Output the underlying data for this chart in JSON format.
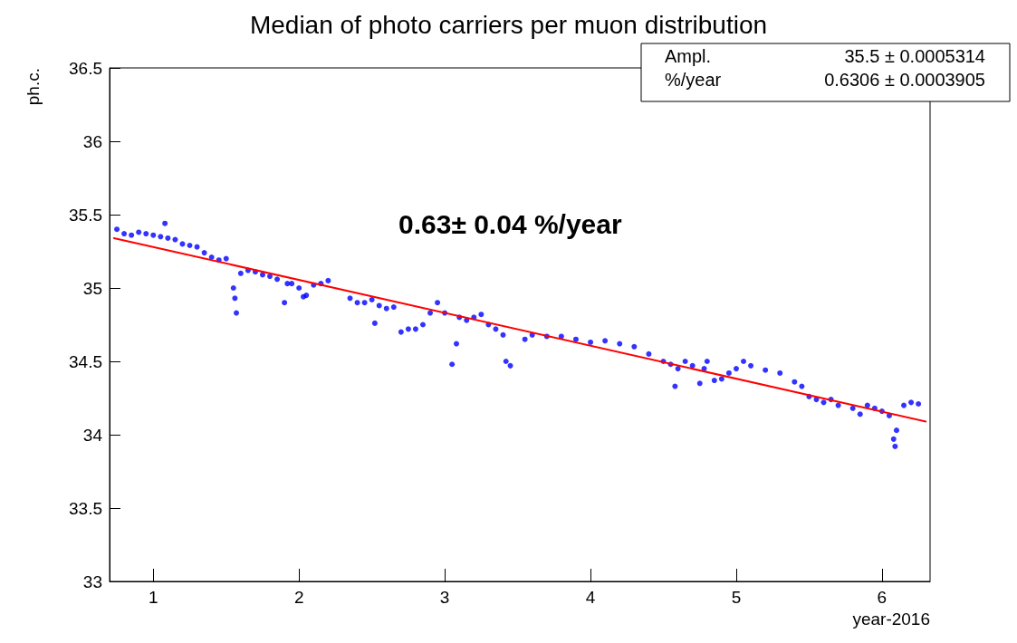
{
  "chart_data": {
    "type": "scatter",
    "title": "Median of photo carriers per muon distribution",
    "xlabel": "year-2016",
    "ylabel": "ph.c.",
    "annotations": [
      "0.63± 0.04 %/year",
      "Ampl.",
      "35.5 ± 0.0005314",
      "%/year",
      "0.6306 ± 0.0003905"
    ],
    "xlim": [
      0.7,
      6.33
    ],
    "xticks": [
      1,
      2,
      3,
      4,
      5,
      6
    ],
    "ylim": [
      33,
      36.5
    ],
    "yticks": [
      33,
      33.5,
      34,
      34.5,
      35,
      35.5,
      36,
      36.5
    ],
    "grid": false,
    "marker": "circle",
    "series": [
      {
        "color": "#0000ff",
        "x": [
          0.75,
          0.8,
          0.85,
          0.9,
          0.95,
          1.0,
          1.05,
          1.08,
          1.1,
          1.15,
          1.2,
          1.25,
          1.3,
          1.35,
          1.4,
          1.45,
          1.5,
          1.55,
          1.56,
          1.57,
          1.6,
          1.65,
          1.7,
          1.75,
          1.8,
          1.85,
          1.9,
          1.92,
          1.95,
          2.0,
          2.03,
          2.05,
          2.1,
          2.15,
          2.2,
          2.35,
          2.4,
          2.45,
          2.5,
          2.52,
          2.55,
          2.6,
          2.65,
          2.7,
          2.75,
          2.8,
          2.85,
          2.9,
          2.95,
          3.0,
          3.05,
          3.08,
          3.1,
          3.15,
          3.2,
          3.25,
          3.3,
          3.35,
          3.4,
          3.42,
          3.45,
          3.55,
          3.6,
          3.7,
          3.8,
          3.9,
          4.0,
          4.1,
          4.2,
          4.3,
          4.4,
          4.5,
          4.55,
          4.58,
          4.6,
          4.65,
          4.7,
          4.75,
          4.78,
          4.8,
          4.85,
          4.9,
          4.95,
          5.0,
          5.05,
          5.1,
          5.2,
          5.3,
          5.4,
          5.45,
          5.5,
          5.55,
          5.6,
          5.65,
          5.7,
          5.8,
          5.85,
          5.9,
          5.95,
          6.0,
          6.05,
          6.08,
          6.09,
          6.1,
          6.15,
          6.2,
          6.25
        ],
        "values": [
          35.4,
          35.37,
          35.36,
          35.38,
          35.37,
          35.36,
          35.35,
          35.44,
          35.34,
          35.33,
          35.3,
          35.29,
          35.28,
          35.24,
          35.21,
          35.19,
          35.2,
          35.0,
          34.93,
          34.83,
          35.1,
          35.12,
          35.11,
          35.09,
          35.08,
          35.06,
          34.9,
          35.03,
          35.03,
          35.0,
          34.94,
          34.95,
          35.02,
          35.03,
          35.05,
          34.93,
          34.9,
          34.9,
          34.92,
          34.76,
          34.88,
          34.86,
          34.87,
          34.7,
          34.72,
          34.72,
          34.75,
          34.83,
          34.9,
          34.83,
          34.48,
          34.62,
          34.8,
          34.78,
          34.8,
          34.82,
          34.75,
          34.72,
          34.68,
          34.5,
          34.47,
          34.65,
          34.68,
          34.67,
          34.67,
          34.65,
          34.63,
          34.64,
          34.62,
          34.6,
          34.55,
          34.5,
          34.48,
          34.33,
          34.45,
          34.5,
          34.47,
          34.35,
          34.45,
          34.5,
          34.37,
          34.38,
          34.42,
          34.45,
          34.5,
          34.47,
          34.44,
          34.42,
          34.36,
          34.33,
          34.26,
          34.24,
          34.22,
          34.24,
          34.2,
          34.18,
          34.14,
          34.2,
          34.18,
          34.16,
          34.13,
          33.97,
          33.92,
          34.03,
          34.2,
          34.22,
          34.21
        ]
      },
      {
        "type": "line",
        "color": "#ff0000",
        "marker": "none",
        "x": [
          0.73,
          6.3
        ],
        "values": [
          35.34,
          34.09
        ]
      }
    ]
  }
}
